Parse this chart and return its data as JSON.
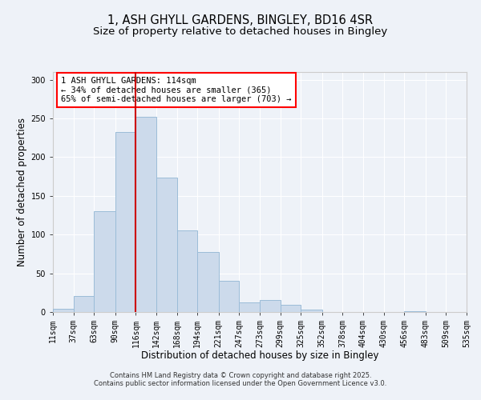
{
  "title": "1, ASH GHYLL GARDENS, BINGLEY, BD16 4SR",
  "subtitle": "Size of property relative to detached houses in Bingley",
  "xlabel": "Distribution of detached houses by size in Bingley",
  "ylabel": "Number of detached properties",
  "bar_color": "#ccdaeb",
  "bar_edge_color": "#9bbcd8",
  "background_color": "#eef2f8",
  "plot_bg_color": "#eef2f8",
  "bin_edges": [
    11,
    37,
    63,
    90,
    116,
    142,
    168,
    194,
    221,
    247,
    273,
    299,
    325,
    352,
    378,
    404,
    430,
    456,
    483,
    509,
    535
  ],
  "bin_labels": [
    "11sqm",
    "37sqm",
    "63sqm",
    "90sqm",
    "116sqm",
    "142sqm",
    "168sqm",
    "194sqm",
    "221sqm",
    "247sqm",
    "273sqm",
    "299sqm",
    "325sqm",
    "352sqm",
    "378sqm",
    "404sqm",
    "430sqm",
    "456sqm",
    "483sqm",
    "509sqm",
    "535sqm"
  ],
  "bar_heights": [
    4,
    21,
    130,
    233,
    252,
    174,
    105,
    77,
    40,
    12,
    16,
    9,
    3,
    0,
    0,
    0,
    0,
    1,
    0,
    0
  ],
  "vline_x": 116,
  "vline_color": "#cc0000",
  "ylim": [
    0,
    310
  ],
  "yticks": [
    0,
    50,
    100,
    150,
    200,
    250,
    300
  ],
  "annotation_text_line1": "1 ASH GHYLL GARDENS: 114sqm",
  "annotation_text_line2": "← 34% of detached houses are smaller (365)",
  "annotation_text_line3": "65% of semi-detached houses are larger (703) →",
  "footer_line1": "Contains HM Land Registry data © Crown copyright and database right 2025.",
  "footer_line2": "Contains public sector information licensed under the Open Government Licence v3.0.",
  "title_fontsize": 10.5,
  "subtitle_fontsize": 9.5,
  "axis_label_fontsize": 8.5,
  "tick_fontsize": 7,
  "annotation_fontsize": 7.5,
  "footer_fontsize": 6
}
